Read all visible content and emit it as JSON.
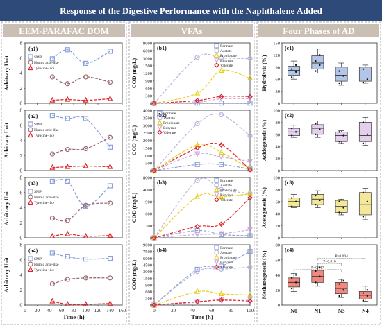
{
  "title": "Response of the Digestive Performance  with the Naphthalene Added",
  "colors": {
    "banner": "#2e4a78",
    "smp": "#8aa0d8",
    "humic": "#9b6a70",
    "tyrosine": "#e0242a",
    "formate": "#8aa0d8",
    "acetate": "#b8b4dc",
    "propionate": "#e8cf1a",
    "butyrate": "#caa8dc",
    "valerate": "#e0242a"
  },
  "chart_data": [
    {
      "type": "line",
      "section": "EEM-PARAFAC DOM",
      "panel": "(a1)",
      "ylabel": "Arbitrary Unit",
      "ylim": [
        0,
        8
      ],
      "yticks": [
        0,
        2,
        4,
        6,
        8
      ],
      "xlim": [
        0,
        160
      ],
      "xticks": [
        0,
        20,
        40,
        60,
        80,
        100,
        120,
        140,
        160
      ],
      "x": [
        45,
        70,
        100,
        140
      ],
      "legend": [
        "SMP",
        "Humic acid-like",
        "Tyrosine-like"
      ],
      "series": [
        {
          "name": "SMP",
          "values": [
            5.9,
            7.1,
            5.3,
            6.9
          ]
        },
        {
          "name": "Humic acid-like",
          "values": [
            3.5,
            2.6,
            3.5,
            2.8
          ]
        },
        {
          "name": "Tyrosine-like",
          "values": [
            0.4,
            0.5,
            0.4,
            0.6
          ]
        }
      ]
    },
    {
      "type": "line",
      "section": "EEM-PARAFAC DOM",
      "panel": "(a2)",
      "ylabel": "Arbitrary Unit",
      "ylim": [
        0,
        8
      ],
      "yticks": [
        0,
        2,
        4,
        6,
        8
      ],
      "xlim": [
        0,
        160
      ],
      "x": [
        45,
        70,
        100,
        140
      ],
      "legend": [
        "SMP",
        "Humic acid-like",
        "Tyrosine-like"
      ],
      "series": [
        {
          "name": "SMP",
          "values": [
            7.3,
            6.9,
            6.9,
            3.1
          ]
        },
        {
          "name": "Humic acid-like",
          "values": [
            2.2,
            2.8,
            2.9,
            4.4
          ]
        },
        {
          "name": "Tyrosine-like",
          "values": [
            0.4,
            0.5,
            0.6,
            0.5
          ]
        }
      ]
    },
    {
      "type": "line",
      "section": "EEM-PARAFAC DOM",
      "panel": "(a3)",
      "ylabel": "Arbitrary Unit",
      "ylim": [
        0,
        8
      ],
      "yticks": [
        0,
        2,
        4,
        6,
        8
      ],
      "xlim": [
        0,
        160
      ],
      "x": [
        45,
        70,
        100,
        140
      ],
      "legend": [
        "SMP",
        "Humic acid-like",
        "Tyrosine-like"
      ],
      "series": [
        {
          "name": "SMP",
          "values": [
            7.5,
            7.5,
            4.2,
            6.9
          ]
        },
        {
          "name": "Humic acid-like",
          "values": [
            2.6,
            2.3,
            4.3,
            4.6
          ]
        },
        {
          "name": "Tyrosine-like",
          "values": [
            0.2,
            0.5,
            0.2,
            0.3
          ]
        }
      ]
    },
    {
      "type": "line",
      "section": "EEM-PARAFAC DOM",
      "panel": "(a4)",
      "ylabel": "Arbitrary Unit",
      "ylim": [
        0,
        8
      ],
      "yticks": [
        0,
        2,
        4,
        6,
        8
      ],
      "xlim": [
        0,
        160
      ],
      "xticks": [
        0,
        20,
        40,
        60,
        80,
        100,
        120,
        140,
        160
      ],
      "xlabel": "Time (h)",
      "x": [
        45,
        70,
        100,
        140
      ],
      "legend": [
        "SMP",
        "Humic acid-like",
        "Tyrosine-like"
      ],
      "series": [
        {
          "name": "SMP",
          "values": [
            6.9,
            6.4,
            6.1,
            6.2
          ]
        },
        {
          "name": "Humic acid-like",
          "values": [
            2.8,
            3.4,
            3.6,
            3.6
          ]
        },
        {
          "name": "Tyrosine-like",
          "values": [
            0.5,
            0.1,
            0.1,
            0.2
          ]
        }
      ]
    },
    {
      "type": "line",
      "section": "VFAs",
      "panel": "(b1)",
      "ylabel": "COD (mg/L)",
      "ylim": [
        0,
        9000
      ],
      "yticks": [
        0,
        300,
        600,
        900,
        1200,
        1500,
        3000,
        6000,
        9000
      ],
      "scale": "broken",
      "xlim": [
        0,
        100
      ],
      "x": [
        0,
        45,
        70,
        100
      ],
      "legend": [
        "Formate",
        "Acetate",
        "Propionate",
        "Butyrate",
        "Valerate"
      ],
      "series": [
        {
          "name": "Formate",
          "values": [
            0,
            10,
            10,
            10
          ]
        },
        {
          "name": "Acetate",
          "values": [
            0,
            3300,
            3000,
            2900
          ]
        },
        {
          "name": "Propionate",
          "values": [
            0,
            400,
            1300,
            1000
          ]
        },
        {
          "name": "Butyrate",
          "values": [
            0,
            40,
            180,
            180
          ]
        },
        {
          "name": "Valerate",
          "values": [
            0,
            110,
            270,
            270
          ]
        }
      ]
    },
    {
      "type": "line",
      "section": "VFAs",
      "panel": "(b2)",
      "ylabel": "COD (mg/L)",
      "ylim": [
        0,
        4000
      ],
      "yticks": [
        0,
        500,
        1000,
        1500,
        2000,
        2500,
        3000,
        3500,
        4000
      ],
      "xlim": [
        0,
        100
      ],
      "x": [
        0,
        45,
        70,
        100
      ],
      "legend": [
        "Formate",
        "Acetate",
        "Propionate",
        "Butyrate",
        "Valerate"
      ],
      "series": [
        {
          "name": "Formate",
          "values": [
            0,
            400,
            400,
            100
          ]
        },
        {
          "name": "Acetate",
          "values": [
            0,
            3100,
            3700,
            2300
          ]
        },
        {
          "name": "Propionate",
          "values": [
            0,
            1700,
            1200,
            100
          ]
        },
        {
          "name": "Butyrate",
          "values": [
            0,
            1100,
            900,
            600
          ]
        },
        {
          "name": "Valerate",
          "values": [
            0,
            1500,
            1700,
            50
          ]
        }
      ]
    },
    {
      "type": "line",
      "section": "VFAs",
      "panel": "(b3)",
      "ylabel": "COD (mg/L)",
      "ylim": [
        0,
        8000
      ],
      "yticks": [
        0,
        300,
        600,
        900,
        4000,
        8000
      ],
      "scale": "broken",
      "xlim": [
        0,
        100
      ],
      "x": [
        0,
        45,
        70,
        100
      ],
      "legend": [
        "Formate",
        "Acetate",
        "Propionate",
        "Butyrate",
        "Valerate"
      ],
      "series": [
        {
          "name": "Formate",
          "values": [
            0,
            180,
            80,
            50
          ]
        },
        {
          "name": "Acetate",
          "values": [
            0,
            7000,
            4000,
            3000
          ]
        },
        {
          "name": "Propionate",
          "values": [
            0,
            2200,
            2100,
            2900
          ]
        },
        {
          "name": "Butyrate",
          "values": [
            0,
            80,
            100,
            200
          ]
        },
        {
          "name": "Valerate",
          "values": [
            0,
            280,
            340,
            1900
          ]
        }
      ]
    },
    {
      "type": "line",
      "section": "VFAs",
      "panel": "(b4)",
      "ylabel": "COD (mg/L)",
      "ylim": [
        0,
        9000
      ],
      "yticks": [
        0,
        300,
        600,
        900,
        1500,
        3000,
        4500,
        6000,
        7500,
        9000
      ],
      "scale": "broken",
      "xlim": [
        0,
        100
      ],
      "xticks": [
        0,
        20,
        40,
        60,
        80,
        100
      ],
      "xlabel": "Time (h)",
      "x": [
        0,
        45,
        70,
        100
      ],
      "legend": [
        "Formate",
        "Acetate",
        "Propionate",
        "Butyrate",
        "Valerate"
      ],
      "series": [
        {
          "name": "Formate",
          "values": [
            0,
            3500,
            4200,
            7500
          ]
        },
        {
          "name": "Acetate",
          "values": [
            0,
            3000,
            3500,
            4000
          ]
        },
        {
          "name": "Propionate",
          "values": [
            0,
            600,
            500,
            450
          ]
        },
        {
          "name": "Butyrate",
          "values": [
            0,
            120,
            250,
            250
          ]
        },
        {
          "name": "Valerate",
          "values": [
            0,
            150,
            220,
            180
          ]
        }
      ]
    },
    {
      "type": "box",
      "section": "Four Phases of AD",
      "panel": "(c1)",
      "ylabel": "Hydrolysis (%)",
      "ylim": [
        0,
        150
      ],
      "yticks": [
        0,
        30,
        60,
        90,
        120,
        150
      ],
      "categories": [
        "N0",
        "N1",
        "N3",
        "N4"
      ],
      "color": "#b4c6e7",
      "boxes": [
        {
          "min": 60,
          "q1": 70,
          "median": 82,
          "q3": 92,
          "max": 105,
          "points": [
            65,
            78,
            85,
            95
          ]
        },
        {
          "min": 75,
          "q1": 85,
          "median": 100,
          "q3": 118,
          "max": 135,
          "points": [
            80,
            95,
            105,
            120
          ]
        },
        {
          "min": 45,
          "q1": 55,
          "median": 70,
          "q3": 90,
          "max": 100,
          "points": [
            50,
            68,
            80
          ]
        },
        {
          "min": 50,
          "q1": 55,
          "median": 75,
          "q3": 90,
          "max": 95,
          "points": [
            52,
            60,
            85
          ]
        }
      ]
    },
    {
      "type": "box",
      "section": "Four Phases of AD",
      "panel": "(c2)",
      "ylabel": "Acidogenesis (%)",
      "ylim": [
        0,
        100
      ],
      "yticks": [
        0,
        20,
        40,
        60,
        80,
        100
      ],
      "categories": [
        "N0",
        "N1",
        "N3",
        "N4"
      ],
      "color": "#e4d0ec",
      "boxes": [
        {
          "min": 55,
          "q1": 58,
          "median": 64,
          "q3": 70,
          "max": 75,
          "points": [
            58,
            64,
            70
          ]
        },
        {
          "min": 55,
          "q1": 60,
          "median": 70,
          "q3": 76,
          "max": 82,
          "points": [
            60,
            68,
            78
          ]
        },
        {
          "min": 45,
          "q1": 48,
          "median": 58,
          "q3": 64,
          "max": 66,
          "points": [
            48,
            58,
            64
          ]
        },
        {
          "min": 42,
          "q1": 48,
          "median": 58,
          "q3": 80,
          "max": 88,
          "points": [
            45,
            60,
            80
          ]
        }
      ]
    },
    {
      "type": "box",
      "section": "Four Phases of AD",
      "panel": "(c3)",
      "ylabel": "Acetogenesis (%)",
      "ylim": [
        0,
        100
      ],
      "yticks": [
        0,
        20,
        40,
        60,
        80,
        100
      ],
      "categories": [
        "N0",
        "N1",
        "N3",
        "N4"
      ],
      "color": "#f3e79a",
      "boxes": [
        {
          "min": 50,
          "q1": 52,
          "median": 60,
          "q3": 66,
          "max": 72,
          "points": [
            52,
            60,
            66
          ]
        },
        {
          "min": 50,
          "q1": 55,
          "median": 64,
          "q3": 72,
          "max": 78,
          "points": [
            55,
            62,
            70
          ]
        },
        {
          "min": 38,
          "q1": 42,
          "median": 52,
          "q3": 62,
          "max": 64,
          "points": [
            42,
            50,
            60
          ]
        },
        {
          "min": 30,
          "q1": 38,
          "median": 55,
          "q3": 75,
          "max": 82,
          "points": [
            35,
            60,
            75
          ]
        }
      ]
    },
    {
      "type": "box",
      "section": "Four Phases of AD",
      "panel": "(c4)",
      "ylabel": "Methanogenesis (%)",
      "ylim": [
        0,
        80
      ],
      "yticks": [
        0,
        20,
        40,
        60,
        80
      ],
      "categories": [
        "N0",
        "N1",
        "N3",
        "N4"
      ],
      "color": "#f08a80",
      "boxes": [
        {
          "min": 18,
          "q1": 24,
          "median": 30,
          "q3": 36,
          "max": 42,
          "points": [
            22,
            30,
            36,
            40
          ]
        },
        {
          "min": 25,
          "q1": 30,
          "median": 38,
          "q3": 46,
          "max": 52,
          "points": [
            30,
            38,
            45,
            50
          ]
        },
        {
          "min": 10,
          "q1": 15,
          "median": 22,
          "q3": 30,
          "max": 34,
          "points": [
            12,
            20,
            28,
            32
          ]
        },
        {
          "min": 5,
          "q1": 8,
          "median": 13,
          "q3": 18,
          "max": 25,
          "points": [
            6,
            12,
            16,
            20
          ]
        }
      ],
      "annotations": [
        {
          "text": "P=0.017",
          "from": 0,
          "to": 2,
          "level": 47
        },
        {
          "text": "P=0.010",
          "from": 1,
          "to": 2,
          "level": 55
        },
        {
          "text": "P=0.004",
          "from": 1,
          "to": 3,
          "level": 62
        }
      ]
    }
  ]
}
